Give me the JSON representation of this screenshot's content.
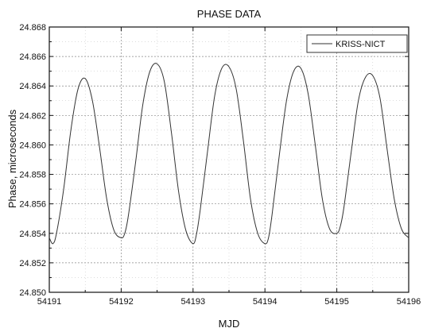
{
  "chart_data": {
    "type": "line",
    "title": "PHASE DATA",
    "xlabel": "MJD",
    "ylabel": "Phase,  microseconds",
    "xlim": [
      54191,
      54196
    ],
    "ylim": [
      24.85,
      24.868
    ],
    "x_ticks": [
      54191,
      54192,
      54193,
      54194,
      54195,
      54196
    ],
    "x_tick_labels": [
      "54191",
      "54192",
      "54193",
      "54194",
      "54195",
      "54196"
    ],
    "y_ticks": [
      24.85,
      24.852,
      24.854,
      24.856,
      24.858,
      24.86,
      24.862,
      24.864,
      24.866,
      24.868
    ],
    "y_tick_labels": [
      "24.850",
      "24.852",
      "24.854",
      "24.856",
      "24.858",
      "24.860",
      "24.862",
      "24.864",
      "24.866",
      "24.868"
    ],
    "grid": true,
    "legend_position": "top-right",
    "series": [
      {
        "name": "KRISS-NICT",
        "color": "#333333",
        "x": [
          54191.0,
          54191.05,
          54191.1,
          54191.2,
          54191.3,
          54191.4,
          54191.5,
          54191.6,
          54191.7,
          54191.8,
          54191.9,
          54192.0,
          54192.05,
          54192.1,
          54192.2,
          54192.3,
          54192.4,
          54192.5,
          54192.6,
          54192.7,
          54192.8,
          54192.9,
          54193.0,
          54193.05,
          54193.1,
          54193.2,
          54193.3,
          54193.4,
          54193.5,
          54193.6,
          54193.7,
          54193.8,
          54193.9,
          54194.0,
          54194.05,
          54194.1,
          54194.2,
          54194.3,
          54194.4,
          54194.5,
          54194.6,
          54194.7,
          54194.8,
          54194.9,
          54195.0,
          54195.05,
          54195.1,
          54195.2,
          54195.3,
          54195.4,
          54195.5,
          54195.6,
          54195.7,
          54195.8,
          54195.9,
          54196.0
        ],
        "y": [
          24.8537,
          24.8533,
          24.854,
          24.857,
          24.861,
          24.8638,
          24.8645,
          24.863,
          24.8598,
          24.8563,
          24.8542,
          24.8537,
          24.854,
          24.8552,
          24.8588,
          24.8627,
          24.865,
          24.8655,
          24.8643,
          24.8608,
          24.8568,
          24.8542,
          24.8533,
          24.854,
          24.8556,
          24.8595,
          24.8633,
          24.8652,
          24.8653,
          24.8638,
          24.8603,
          24.8563,
          24.854,
          24.8533,
          24.8537,
          24.8553,
          24.8593,
          24.863,
          24.865,
          24.8652,
          24.8635,
          24.86,
          24.8563,
          24.8543,
          24.854,
          24.8545,
          24.8558,
          24.8595,
          24.863,
          24.8646,
          24.8647,
          24.8632,
          24.8597,
          24.8563,
          24.8543,
          24.8537
        ]
      }
    ]
  }
}
